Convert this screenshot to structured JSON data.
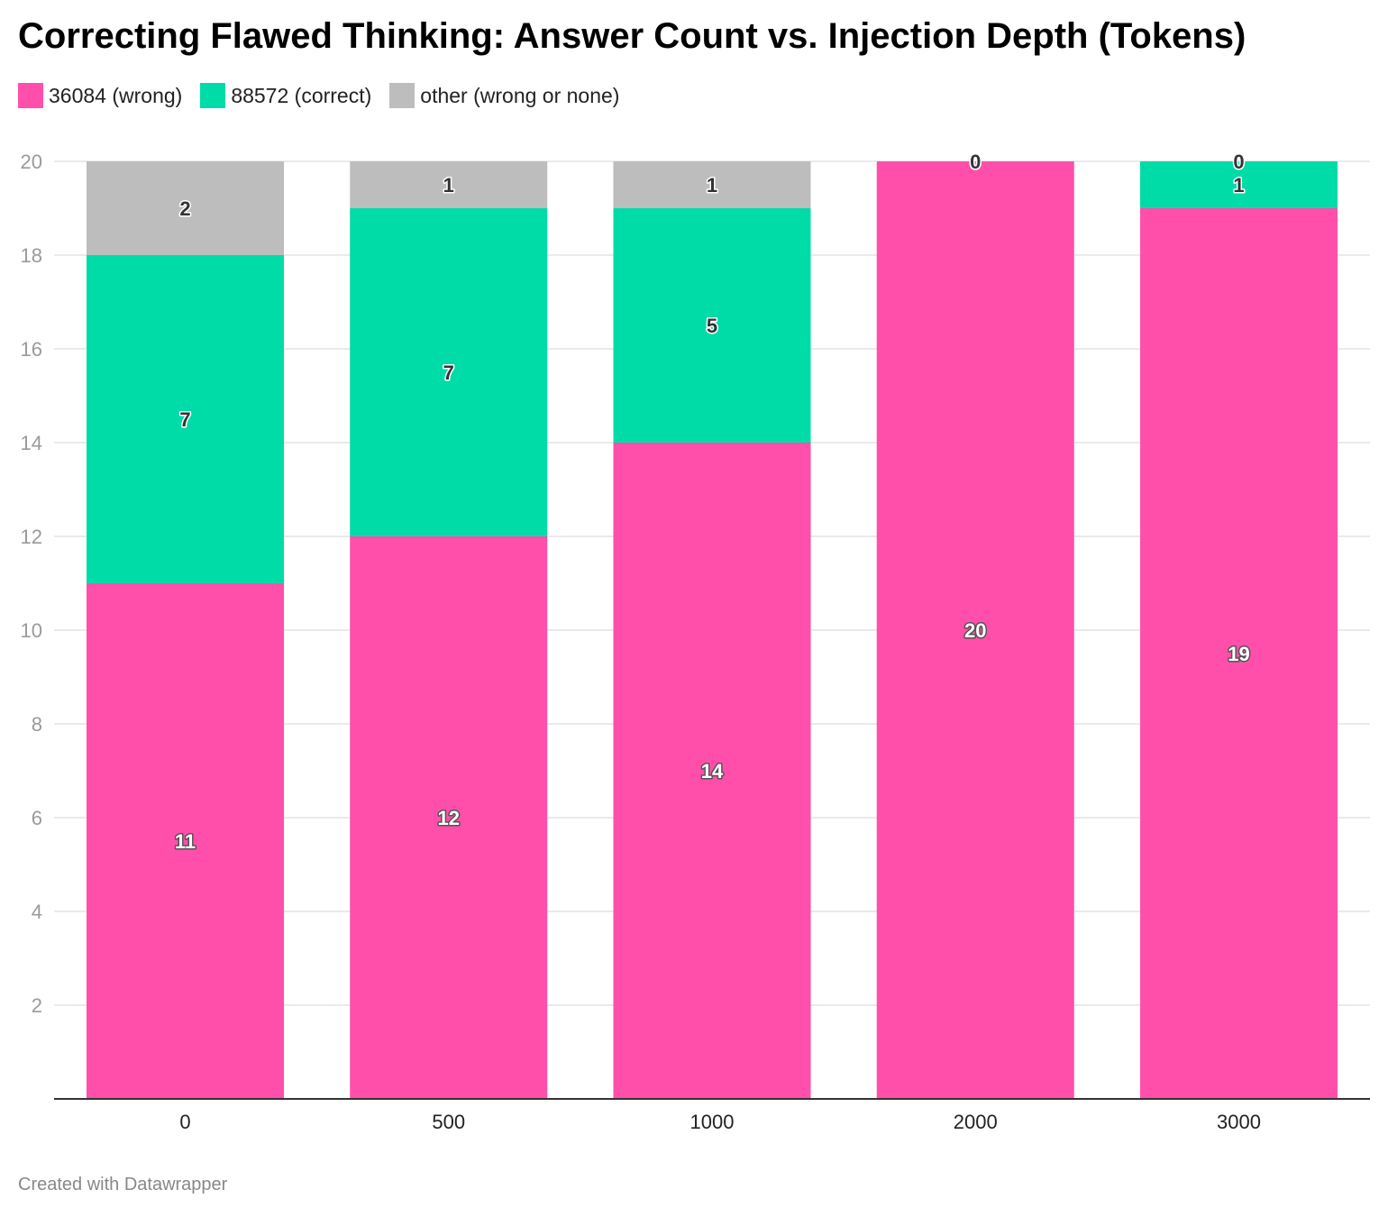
{
  "chart_data": {
    "type": "bar",
    "stacked": true,
    "title": "Correcting Flawed Thinking: Answer Count vs. Injection Depth (Tokens)",
    "xlabel": "",
    "ylabel": "",
    "categories": [
      "0",
      "500",
      "1000",
      "2000",
      "3000"
    ],
    "series": [
      {
        "name": "36084 (wrong)",
        "color": "#ff4fab",
        "values": [
          11,
          12,
          14,
          20,
          19
        ]
      },
      {
        "name": "88572 (correct)",
        "color": "#00dca7",
        "values": [
          7,
          7,
          5,
          0,
          1
        ]
      },
      {
        "name": "other (wrong or none)",
        "color": "#bdbdbd",
        "values": [
          2,
          1,
          1,
          0,
          0
        ]
      }
    ],
    "ylim": [
      0,
      20
    ],
    "yticks": [
      2,
      4,
      6,
      8,
      10,
      12,
      14,
      16,
      18,
      20
    ],
    "grid": true,
    "legend": "top-left"
  },
  "footer": "Created with Datawrapper"
}
